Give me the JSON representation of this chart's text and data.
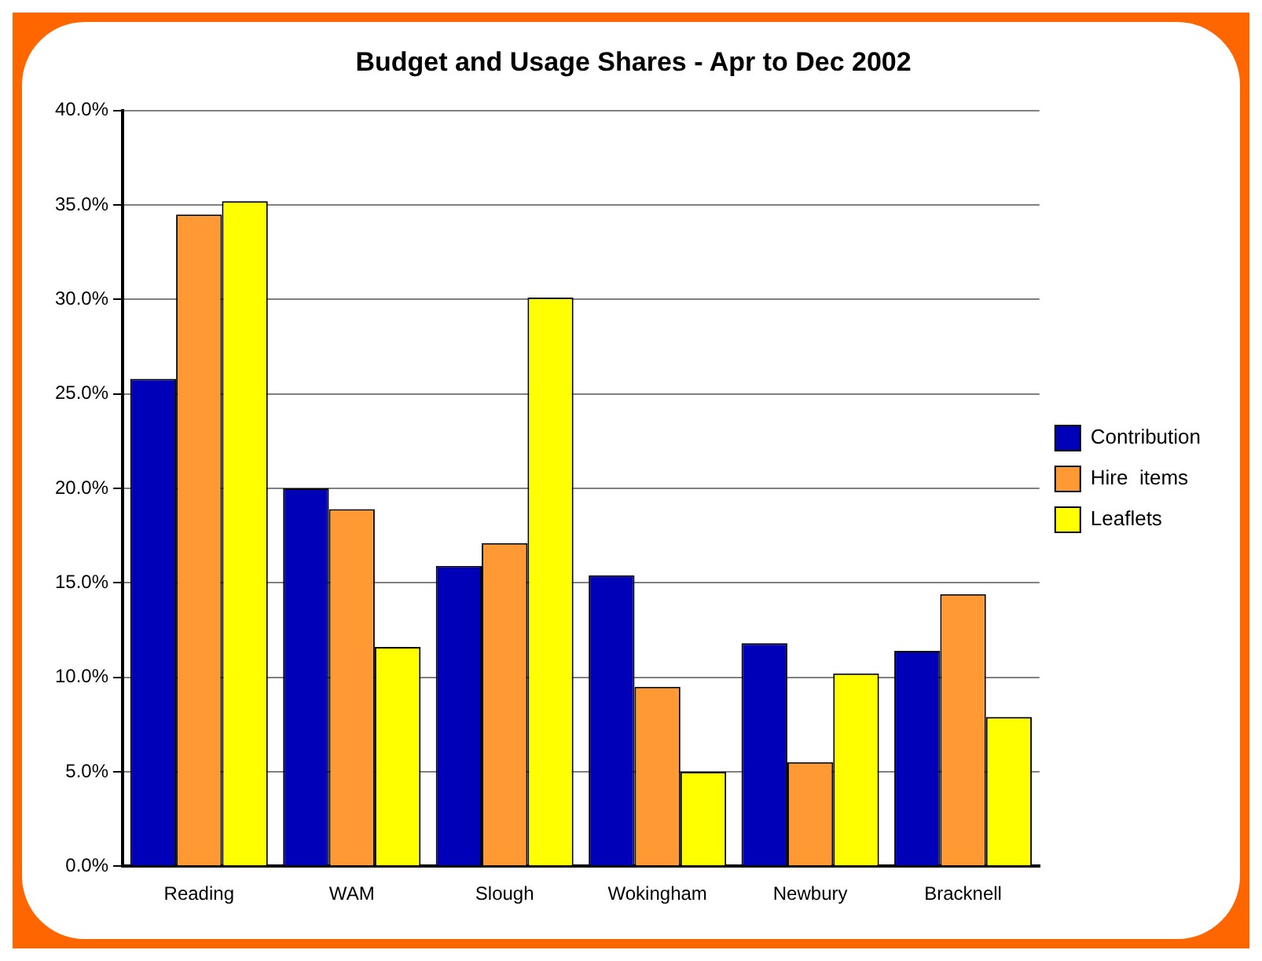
{
  "chart_data": {
    "type": "bar",
    "title": "Budget and Usage Shares - Apr to Dec 2002",
    "categories": [
      "Reading",
      "WAM",
      "Slough",
      "Wokingham",
      "Newbury",
      "Bracknell"
    ],
    "series": [
      {
        "name": "Contribution",
        "color": "#0000b8",
        "values": [
          25.8,
          20.0,
          15.9,
          15.4,
          11.8,
          11.4
        ]
      },
      {
        "name": "Hire  items",
        "color": "#ff9933",
        "values": [
          34.5,
          18.9,
          17.1,
          9.5,
          5.5,
          14.4
        ]
      },
      {
        "name": "Leaflets",
        "color": "#ffff00",
        "values": [
          35.2,
          11.6,
          30.1,
          5.0,
          10.2,
          7.9
        ]
      }
    ],
    "ylim": [
      0,
      40
    ],
    "yticks": [
      {
        "value": 0,
        "label": "0.0%"
      },
      {
        "value": 5,
        "label": "5.0%"
      },
      {
        "value": 10,
        "label": "10.0%"
      },
      {
        "value": 15,
        "label": "15.0%"
      },
      {
        "value": 20,
        "label": "20.0%"
      },
      {
        "value": 25,
        "label": "25.0%"
      },
      {
        "value": 30,
        "label": "30.0%"
      },
      {
        "value": 35,
        "label": "35.0%"
      },
      {
        "value": 40,
        "label": "40.0%"
      }
    ],
    "grid": "y",
    "legend": "right"
  }
}
